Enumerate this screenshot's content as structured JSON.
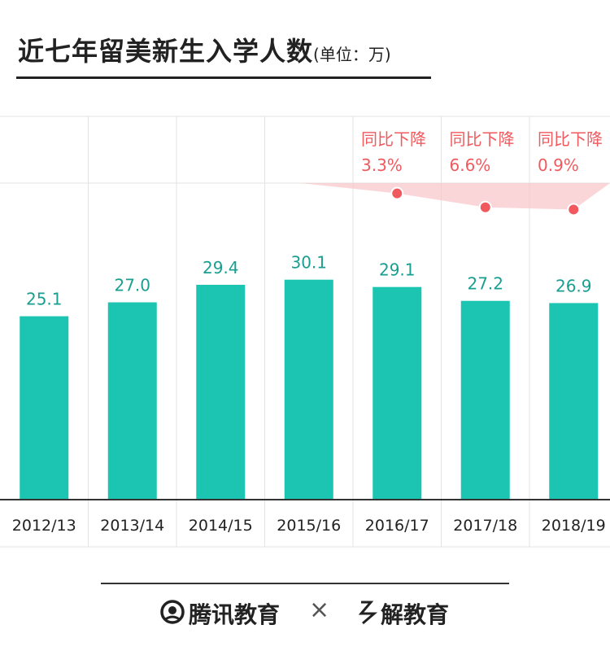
{
  "title": {
    "main": "近七年留美新生入学人数",
    "unit": "(单位：万)"
  },
  "chart_data": {
    "type": "bar",
    "categories": [
      "2012/13",
      "2013/14",
      "2014/15",
      "2015/16",
      "2016/17",
      "2017/18",
      "2018/19"
    ],
    "values": [
      25.1,
      27.0,
      29.4,
      30.1,
      29.1,
      27.2,
      26.9
    ],
    "bar_color": "#1cc5b2",
    "value_label_color": "#1a9e8f",
    "annotations": [
      {
        "category": "2016/17",
        "line1": "同比下降",
        "line2": "3.3%"
      },
      {
        "category": "2017/18",
        "line1": "同比下降",
        "line2": "6.6%"
      },
      {
        "category": "2018/19",
        "line1": "同比下降",
        "line2": "0.9%"
      }
    ],
    "annotation_color": "#f05a5f",
    "highlight_fill": "#f9c5c7"
  },
  "footer": {
    "brand_left": "腾讯教育",
    "separator": "×",
    "brand_right": "解教育"
  }
}
